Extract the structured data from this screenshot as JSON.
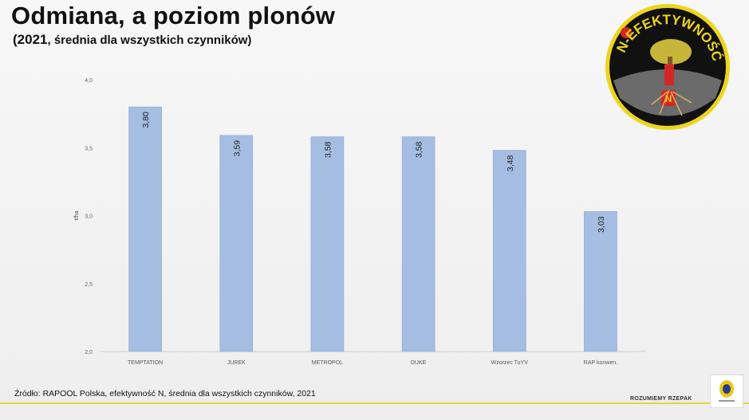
{
  "header": {
    "title": "Odmiana, a poziom plonów",
    "subtitle_year": "(2021",
    "subtitle_rest": ", średnia dla wszystkich czynników)"
  },
  "chart_data": {
    "type": "bar",
    "categories": [
      "TEMPTATION",
      "JUREK",
      "METROPOL",
      "DUKE",
      "Wzorzec TuYV",
      "RAP konwen."
    ],
    "values": [
      3.8,
      3.59,
      3.58,
      3.58,
      3.48,
      3.03
    ],
    "value_labels": [
      "3,80",
      "3,59",
      "3,58",
      "3,58",
      "3,48",
      "3,03"
    ],
    "ylabel": "t/ha",
    "ylim": [
      2.0,
      4.0
    ],
    "yticks": [
      2.0,
      2.5,
      3.0,
      3.5,
      4.0
    ],
    "ytick_labels": [
      "2,0",
      "2,5",
      "3,0",
      "3,5",
      "4,0"
    ],
    "bar_color": "#a5bde0",
    "grid": false,
    "legend": "none"
  },
  "footer": {
    "source": "Źródło: RAPOOL Polska, efektywność N, średnia dla wszystkich czynników,  2021",
    "brand": "ROZUMIEMY RZEPAK"
  },
  "emblem": {
    "text": "N-EFEKTYWNOŚĆ",
    "badge": "N",
    "colors": {
      "ring": "#ecd51d",
      "bg": "#111111",
      "accent": "#d52626"
    }
  }
}
